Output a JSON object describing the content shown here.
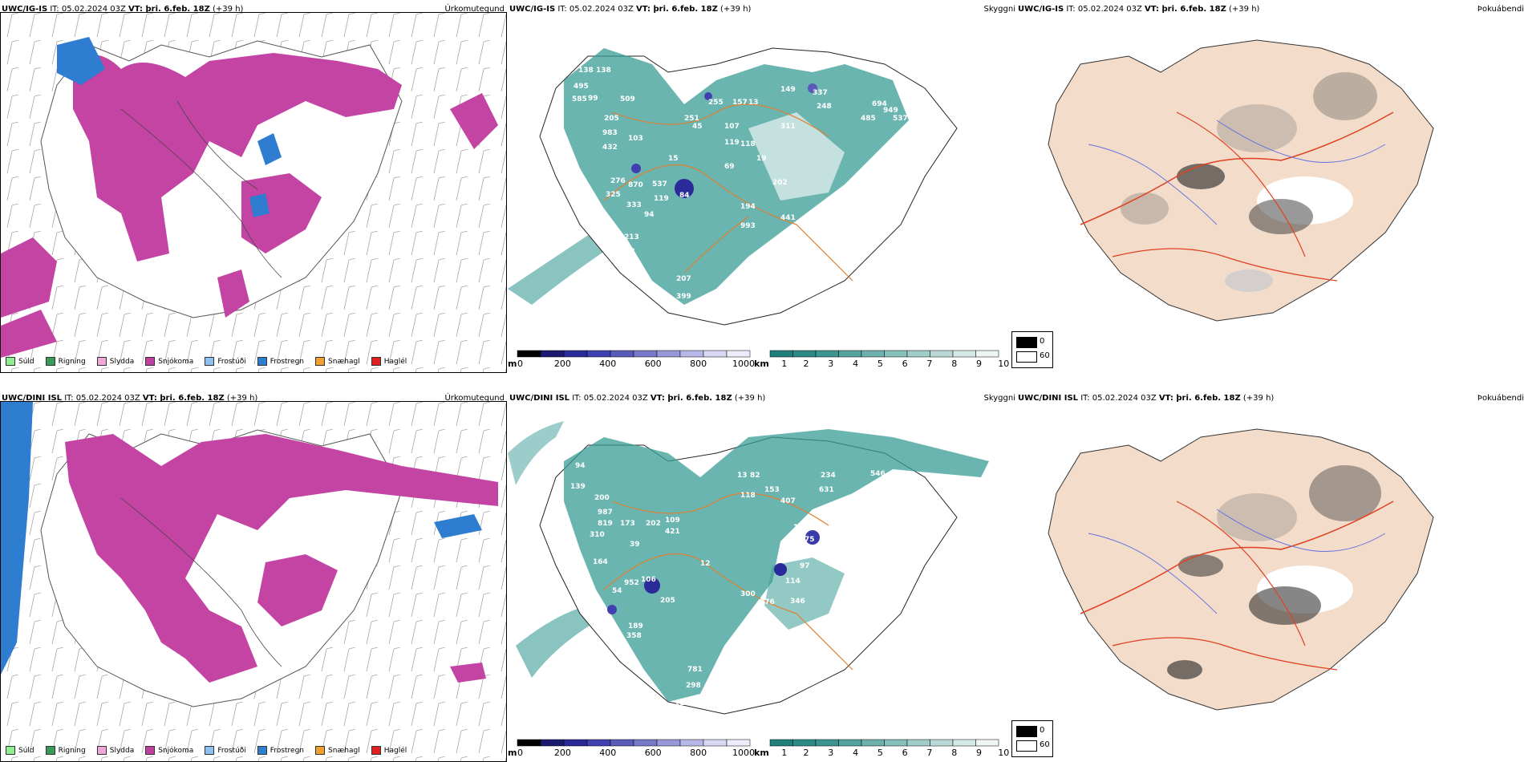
{
  "panels": [
    {
      "title_model": "UWC/IG-IS",
      "title_rest_it": " IT: 05.02.2024 03Z ",
      "title_vt_label": "VT:",
      "title_vt_value": " þri. 6.feb. 18Z",
      "title_lead": " (+39 h)",
      "param": "Úrkomutegund"
    },
    {
      "title_model": "UWC/IG-IS",
      "title_rest_it": " IT: 05.02.2024 03Z ",
      "title_vt_label": "VT:",
      "title_vt_value": " þri. 6.feb. 18Z",
      "title_lead": " (+39 h)",
      "param": "Skyggni"
    },
    {
      "title_model": "UWC/IG-IS",
      "title_rest_it": " IT: 05.02.2024 03Z ",
      "title_vt_label": "",
      "title_vt_value": "",
      "title_lead": "",
      "param": "Þokuábendi"
    },
    {
      "title_model": "UWC/DINI ISL",
      "title_rest_it": " IT: 05.02.2024 03Z ",
      "title_vt_label": "VT:",
      "title_vt_value": " þri. 6.feb. 18Z",
      "title_lead": " (+39 h)",
      "param": "Úrkomutegund"
    },
    {
      "title_model": "UWC/DINI ISL",
      "title_rest_it": " IT: 05.02.2024 03Z ",
      "title_vt_label": "VT:",
      "title_vt_value": " þri. 6.feb. 18Z",
      "title_lead": " (+39 h)",
      "param": "Skyggni"
    },
    {
      "title_model": "UWC/DINI ISL",
      "title_rest_it": " IT: 05.02.2024 03Z ",
      "title_vt_label": "",
      "title_vt_value": "",
      "title_lead": "",
      "param": "Þokuábendi"
    }
  ],
  "precip_legend": [
    {
      "label": "Súld",
      "color": "#90ee90"
    },
    {
      "label": "Rigning",
      "color": "#3a9a5a"
    },
    {
      "label": "Slydda",
      "color": "#f0a8d8"
    },
    {
      "label": "Snjókoma",
      "color": "#c040a0"
    },
    {
      "label": "Frostúði",
      "color": "#8ec0f0"
    },
    {
      "label": "Frostregn",
      "color": "#2f7fd0"
    },
    {
      "label": "Snæhagl",
      "color": "#f0a030"
    },
    {
      "label": "Haglél",
      "color": "#e02020"
    }
  ],
  "vis_scale_m": {
    "unit": "m",
    "ticks": [
      "0",
      "200",
      "400",
      "600",
      "800",
      "1000"
    ],
    "colors": [
      "#000000",
      "#1a1a70",
      "#2a2a99",
      "#4040b0",
      "#5a5ab8",
      "#7878c8",
      "#9898d8",
      "#b8b8e8",
      "#d8d8f4",
      "#ececfa"
    ]
  },
  "vis_scale_km": {
    "unit": "km",
    "ticks": [
      "1",
      "2",
      "3",
      "4",
      "5",
      "6",
      "7",
      "8",
      "9",
      "10"
    ],
    "colors": [
      "#1f7f7a",
      "#2e8a85",
      "#3d9590",
      "#55a39e",
      "#6eb1ac",
      "#87bfba",
      "#a0cdc9",
      "#bad9d6",
      "#d4e8e6",
      "#eef6f5"
    ]
  },
  "fog_legend": [
    {
      "value": "0",
      "color": "#000000"
    },
    {
      "value": "60",
      "color": "#ffffff"
    }
  ],
  "vis_labels_top": [
    "138",
    "138",
    "495",
    "585",
    "99",
    "509",
    "205",
    "983",
    "432",
    "103",
    "276",
    "870",
    "537",
    "325",
    "119",
    "333",
    "84",
    "94",
    "213",
    "372",
    "207",
    "399",
    "218",
    "15",
    "251",
    "45",
    "255",
    "157",
    "13",
    "149",
    "107",
    "118",
    "119",
    "19",
    "69",
    "202",
    "194",
    "441",
    "993",
    "337",
    "248",
    "694",
    "485",
    "949",
    "537",
    "311"
  ],
  "vis_labels_bottom": [
    "94",
    "139",
    "200",
    "987",
    "819",
    "310",
    "164",
    "952",
    "106",
    "781",
    "298",
    "119",
    "147",
    "358",
    "189",
    "13",
    "82",
    "173",
    "202",
    "109",
    "421",
    "118",
    "153",
    "234",
    "631",
    "407",
    "115",
    "75",
    "97",
    "114",
    "300",
    "276",
    "346",
    "952",
    "177",
    "546",
    "15",
    "39",
    "54",
    "205",
    "12"
  ],
  "colors": {
    "snow": "#c444a4",
    "freezing_rain": "#2e7dd0",
    "freezing_drizzle": "#8ec0f0",
    "vis_teal": "#3a9c96",
    "fog_bg": "#f3dcca",
    "roads": "#e06030"
  }
}
